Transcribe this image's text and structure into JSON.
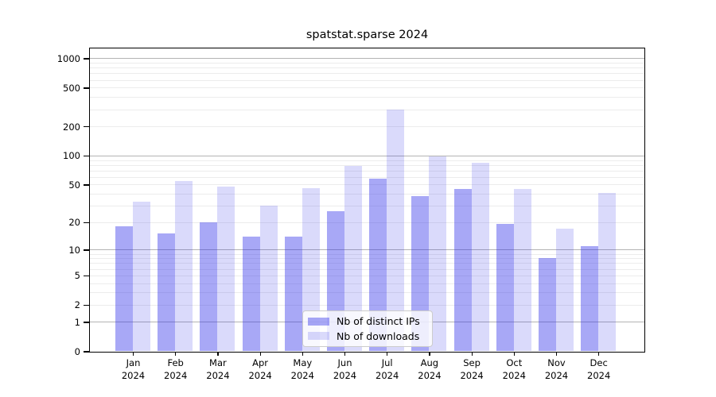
{
  "chart_data": {
    "type": "bar",
    "title": "spatstat.sparse 2024",
    "categories": [
      "Jan",
      "Feb",
      "Mar",
      "Apr",
      "May",
      "Jun",
      "Jul",
      "Aug",
      "Sep",
      "Oct",
      "Nov",
      "Dec"
    ],
    "category_year": "2024",
    "series": [
      {
        "name": "Nb of distinct IPs",
        "color": "rgba(48,48,233,0.42)",
        "values": [
          18,
          15,
          20,
          14,
          14,
          26,
          58,
          38,
          45,
          19,
          8,
          11
        ]
      },
      {
        "name": "Nb of downloads",
        "color": "rgba(48,48,233,0.175)",
        "values": [
          33,
          54,
          48,
          30,
          46,
          78,
          300,
          98,
          85,
          45,
          17,
          41
        ]
      }
    ],
    "y_axis": {
      "scale": "log1p",
      "ticks": [
        0,
        1,
        2,
        5,
        10,
        20,
        50,
        100,
        200,
        500,
        1000
      ],
      "tick_labels": [
        "0",
        "1",
        "2",
        "5",
        "10",
        "20",
        "50",
        "100",
        "200",
        "500",
        "1000"
      ],
      "major_grid_values": [
        1,
        10,
        100,
        1000
      ],
      "ylim_top": 1270
    },
    "grid": true,
    "legend_position": "inside-bottom-center"
  },
  "colors": {
    "major_grid": "#b3b3b3",
    "minor_grid": "#ececec",
    "spine": "#000000",
    "background": "#ffffff"
  }
}
